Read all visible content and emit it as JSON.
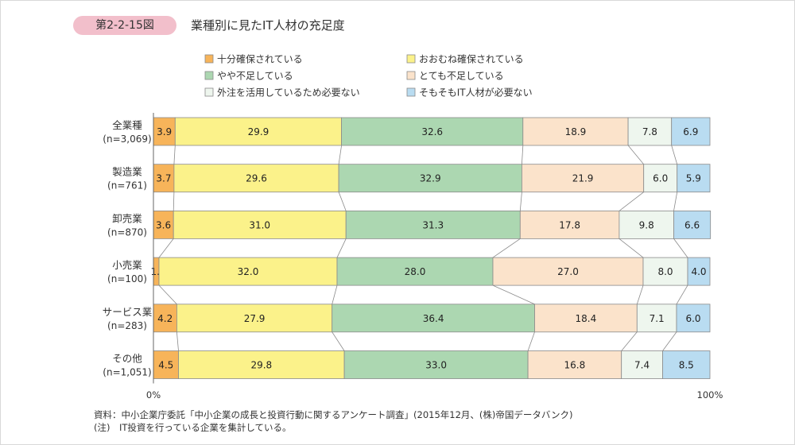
{
  "header": {
    "figure_label": "第2-2-15図",
    "title": "業種別に見たIT人材の充足度"
  },
  "colors": {
    "sufficient": "#f7b45a",
    "mostly": "#fbf28a",
    "somewhat_short": "#acd7b1",
    "very_short": "#fbe3cb",
    "outsourced": "#eef6ee",
    "not_needed": "#b9dcf1",
    "border": "#8a8a8a"
  },
  "chart_data": {
    "type": "bar",
    "orientation": "horizontal",
    "stacked": true,
    "percent": true,
    "categories": [
      {
        "name": "全業種",
        "n": "(n=3,069)"
      },
      {
        "name": "製造業",
        "n": "(n=761)"
      },
      {
        "name": "卸売業",
        "n": "(n=870)"
      },
      {
        "name": "小売業",
        "n": "(n=100)"
      },
      {
        "name": "サービス業",
        "n": "(n=283)"
      },
      {
        "name": "その他",
        "n": "(n=1,051)"
      }
    ],
    "series": [
      {
        "name": "十分確保されている",
        "color_key": "sufficient",
        "values": [
          3.9,
          3.7,
          3.6,
          1.0,
          4.2,
          4.5
        ]
      },
      {
        "name": "おおむね確保されている",
        "color_key": "mostly",
        "values": [
          29.9,
          29.6,
          31.0,
          32.0,
          27.9,
          29.8
        ]
      },
      {
        "name": "やや不足している",
        "color_key": "somewhat_short",
        "values": [
          32.6,
          32.9,
          31.3,
          28.0,
          36.4,
          33.0
        ]
      },
      {
        "name": "とても不足している",
        "color_key": "very_short",
        "values": [
          18.9,
          21.9,
          17.8,
          27.0,
          18.4,
          16.8
        ]
      },
      {
        "name": "外注を活用しているため必要ない",
        "color_key": "outsourced",
        "values": [
          7.8,
          6.0,
          9.8,
          8.0,
          7.1,
          7.4
        ]
      },
      {
        "name": "そもそもIT人材が必要ない",
        "color_key": "not_needed",
        "values": [
          6.9,
          5.9,
          6.6,
          4.0,
          6.0,
          8.5
        ]
      }
    ],
    "xlim": [
      0,
      100
    ],
    "x_tick_labels": [
      "0%",
      "100%"
    ],
    "legend_position": "top"
  },
  "notes": {
    "source": "資料：中小企業庁委託「中小企業の成長と投資行動に関するアンケート調査」(2015年12月、(株)帝国データバンク)",
    "note": "(注)　IT投資を行っている企業を集計している。"
  }
}
